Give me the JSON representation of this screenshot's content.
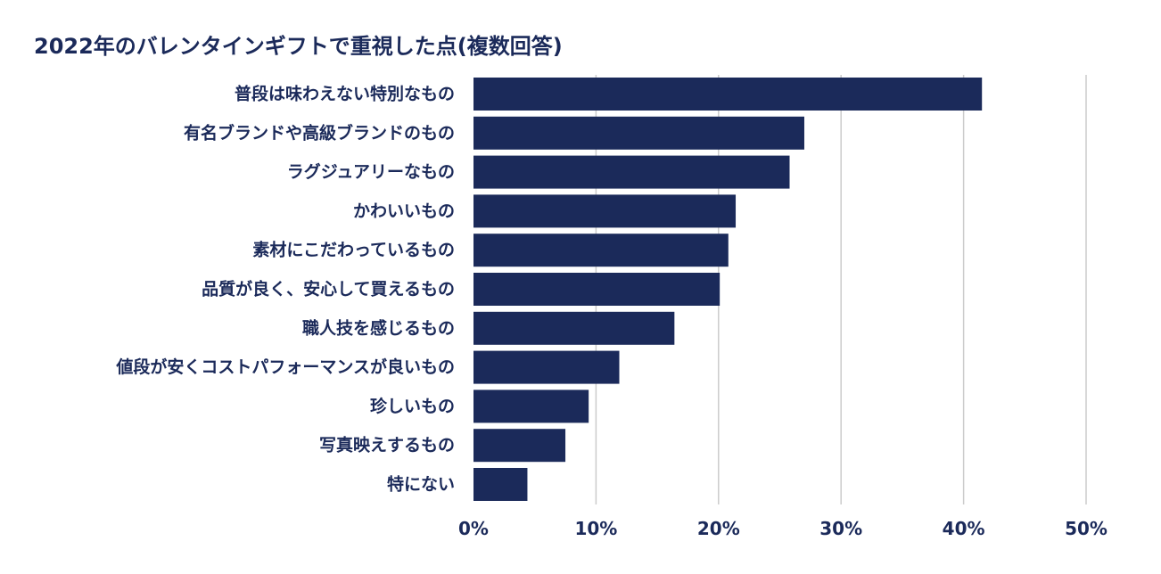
{
  "chart_data": {
    "type": "bar",
    "orientation": "horizontal",
    "title": "2022年のバレンタインギフトで重視した点(複数回答)",
    "categories": [
      "普段は味わえない特別なもの",
      "有名ブランドや高級ブランドのもの",
      "ラグジュアリーなもの",
      "かわいいもの",
      "素材にこだわっているもの",
      "品質が良く、安心して買えるもの",
      "職人技を感じるもの",
      "値段が安くコストパフォーマンスが良いもの",
      "珍しいもの",
      "写真映えするもの",
      "特にない"
    ],
    "values": [
      41.5,
      27.0,
      25.8,
      21.4,
      20.8,
      20.1,
      16.4,
      11.9,
      9.4,
      7.5,
      4.4
    ],
    "xlim": [
      0,
      50
    ],
    "xticks": [
      0,
      10,
      20,
      30,
      40,
      50
    ],
    "xtick_labels": [
      "0%",
      "10%",
      "20%",
      "30%",
      "40%",
      "50%"
    ],
    "xlabel": "",
    "ylabel": "",
    "grid": "vertical",
    "legend": "none",
    "bar_color": "#1b2a5a",
    "text_color": "#1b2a5a",
    "grid_color": "#cccccc"
  }
}
